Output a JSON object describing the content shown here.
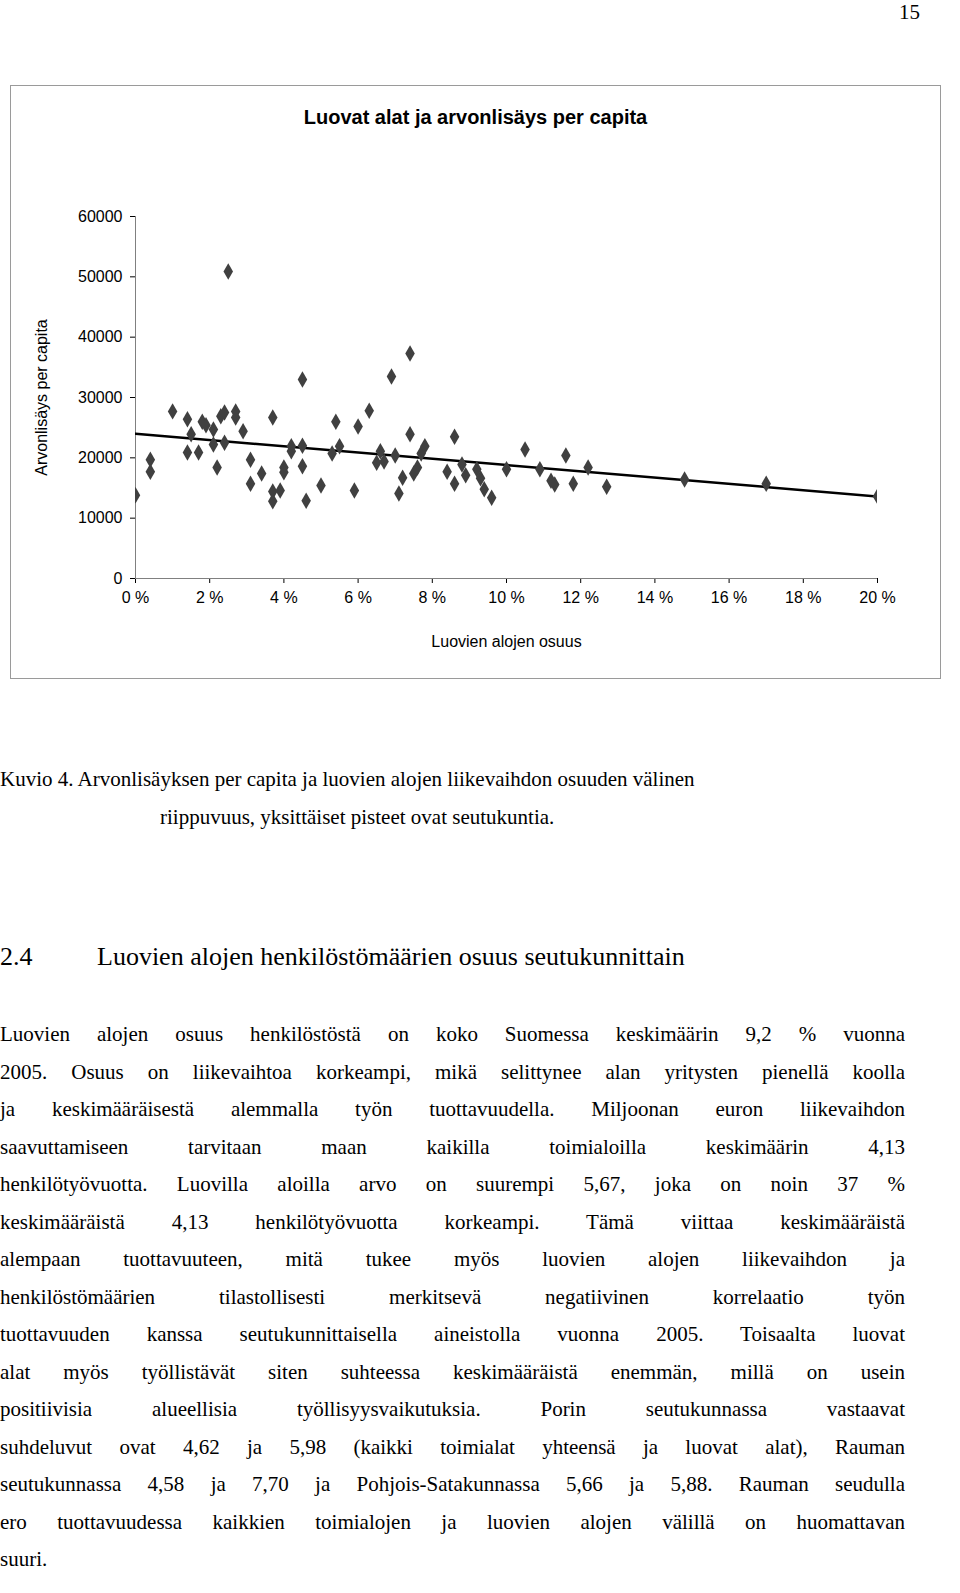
{
  "page_number": "15",
  "chart_data": {
    "type": "scatter",
    "title": "Luovat alat ja arvonlisäys per capita",
    "x_label": "Luovien alojen osuus",
    "y_label": "Arvonlisäys per capita",
    "marker": "diamond",
    "color": "#404040",
    "grid": false,
    "xlim": [
      0,
      20
    ],
    "ylim": [
      0,
      60000
    ],
    "xticks": [
      {
        "value": 0,
        "label": "0 %"
      },
      {
        "value": 2,
        "label": "2 %"
      },
      {
        "value": 4,
        "label": "4 %"
      },
      {
        "value": 6,
        "label": "6 %"
      },
      {
        "value": 8,
        "label": "8 %"
      },
      {
        "value": 10,
        "label": "10 %"
      },
      {
        "value": 12,
        "label": "12 %"
      },
      {
        "value": 14,
        "label": "14 %"
      },
      {
        "value": 16,
        "label": "16 %"
      },
      {
        "value": 18,
        "label": "18 %"
      },
      {
        "value": 20,
        "label": "20 %"
      }
    ],
    "yticks": [
      0,
      10000,
      20000,
      30000,
      40000,
      50000,
      60000
    ],
    "x": [
      0.0,
      0.4,
      0.4,
      1.0,
      1.4,
      1.5,
      1.4,
      1.7,
      1.8,
      1.9,
      2.1,
      2.1,
      2.2,
      2.3,
      2.4,
      2.4,
      2.5,
      2.7,
      2.7,
      2.9,
      3.1,
      3.1,
      3.4,
      3.7,
      3.7,
      3.7,
      3.9,
      4.0,
      4.0,
      4.2,
      4.2,
      4.5,
      4.5,
      4.5,
      4.6,
      5.0,
      5.3,
      5.4,
      5.5,
      5.9,
      6.0,
      6.3,
      6.5,
      6.6,
      6.7,
      6.9,
      7.0,
      7.1,
      7.2,
      7.4,
      7.4,
      7.5,
      7.6,
      7.7,
      7.8,
      8.4,
      8.6,
      8.6,
      8.8,
      8.9,
      9.2,
      9.3,
      9.4,
      9.6,
      10.0,
      10.5,
      10.9,
      11.2,
      11.3,
      11.6,
      11.8,
      12.2,
      12.7,
      14.8,
      17.0,
      20.0
    ],
    "values": [
      13800,
      19700,
      17700,
      27700,
      26400,
      23900,
      20900,
      20900,
      26000,
      25400,
      24700,
      22200,
      18400,
      26900,
      27500,
      22500,
      50900,
      27700,
      26700,
      24400,
      19700,
      15700,
      17400,
      26700,
      14400,
      12800,
      14600,
      18400,
      17600,
      21100,
      21900,
      33000,
      22000,
      18600,
      12900,
      15400,
      20700,
      26000,
      21900,
      14600,
      25200,
      27800,
      19200,
      21100,
      19400,
      33500,
      20400,
      14100,
      16700,
      37300,
      23900,
      17400,
      18400,
      20700,
      21900,
      17700,
      23500,
      15700,
      18900,
      17100,
      18100,
      16600,
      14800,
      13400,
      18100,
      21400,
      18100,
      16200,
      15600,
      20400,
      15700,
      18400,
      15200,
      16400,
      15700,
      13600
    ],
    "trendline": {
      "x": [
        0,
        20
      ],
      "values": [
        24000,
        13600
      ],
      "color": "#000000",
      "line_style": "solid"
    }
  },
  "caption": [
    "Kuvio 4. Arvonlisäyksen per capita ja luovien alojen liikevaihdon osuuden välinen",
    "riippuvuus, yksittäiset pisteet ovat seutukuntia."
  ],
  "section": {
    "number": "2.4",
    "title": "Luovien alojen henkilöstömäärien osuus seutukunnittain"
  },
  "paragraph": [
    "Luovien alojen osuus henkilöstöstä on koko Suomessa keskimäärin 9,2 % vuonna",
    "2005. Osuus on liikevaihtoa korkeampi, mikä selittynee alan yritysten pienellä koolla",
    "ja keskimääräisestä alemmalla työn tuottavuudella. Miljoonan euron liikevaihdon",
    "saavuttamiseen tarvitaan maan kaikilla toimialoilla keskimäärin 4,13",
    "henkilötyövuotta. Luovilla aloilla arvo on suurempi 5,67, joka on noin 37 %",
    "keskimääräistä 4,13 henkilötyövuotta korkeampi. Tämä viittaa keskimääräistä",
    "alempaan tuottavuuteen, mitä tukee myös luovien alojen liikevaihdon ja",
    "henkilöstömäärien tilastollisesti merkitsevä negatiivinen korrelaatio työn",
    "tuottavuuden kanssa seutukunnittaisella aineistolla vuonna 2005. Toisaalta luovat",
    "alat myös työllistävät siten suhteessa keskimääräistä enemmän, millä on usein",
    "positiivisia alueellisia työllisyysvaikutuksia. Porin seutukunnassa vastaavat",
    "suhdeluvut ovat 4,62 ja 5,98 (kaikki toimialat yhteensä ja luovat alat), Rauman",
    "seutukunnassa 4,58 ja 7,70 ja Pohjois-Satakunnassa 5,66 ja 5,88. Rauman seudulla",
    "ero tuottavuudessa kaikkien toimialojen ja luovien alojen välillä on huomattavan",
    "suuri."
  ]
}
